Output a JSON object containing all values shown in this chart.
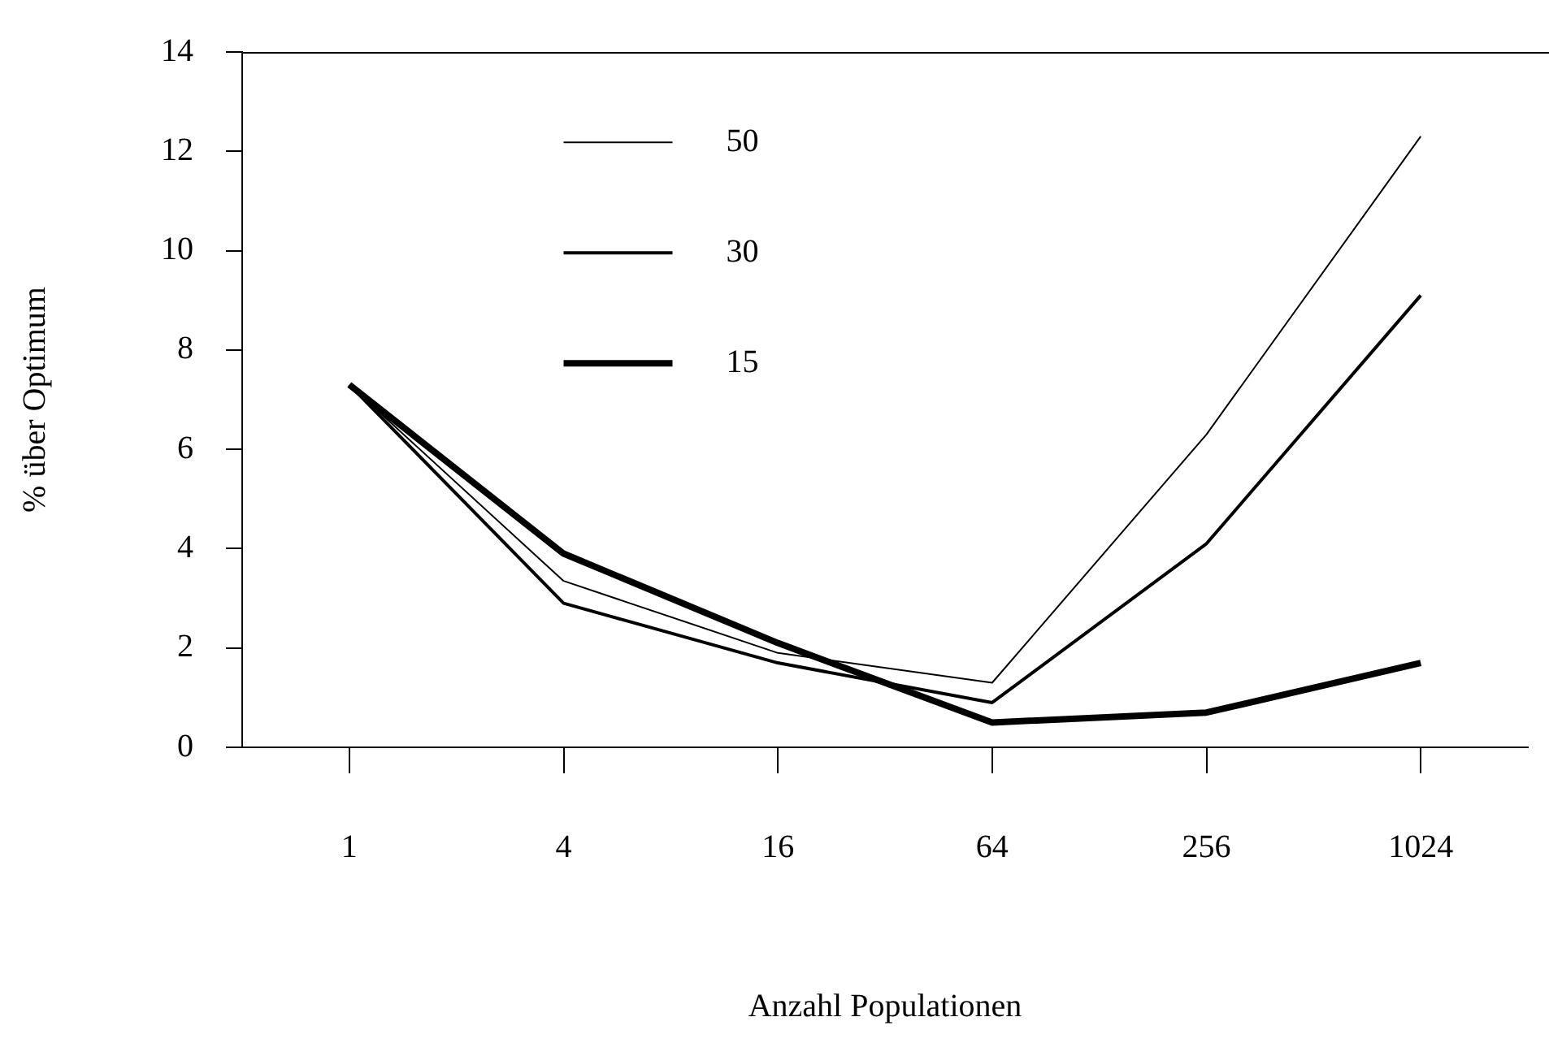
{
  "chart_data": {
    "type": "line",
    "xlabel": "Anzahl Populationen",
    "ylabel": "% über Optimum",
    "categories": [
      "1",
      "4",
      "16",
      "64",
      "256",
      "1024"
    ],
    "series": [
      {
        "name": "50",
        "color": "#000000",
        "values": [
          7.3,
          3.35,
          1.9,
          1.3,
          6.3,
          12.3
        ]
      },
      {
        "name": "30",
        "color": "#000000",
        "values": [
          7.3,
          2.9,
          1.7,
          0.9,
          4.1,
          9.1
        ]
      },
      {
        "name": "15",
        "color": "#000000",
        "values": [
          7.3,
          3.9,
          2.1,
          0.5,
          0.7,
          1.7
        ]
      }
    ],
    "ylim": [
      0,
      14
    ],
    "yticks": [
      0,
      2,
      4,
      6,
      8,
      10,
      12,
      14
    ],
    "grid": false,
    "legend": "top left",
    "marker": "none",
    "line_style": "solid"
  }
}
